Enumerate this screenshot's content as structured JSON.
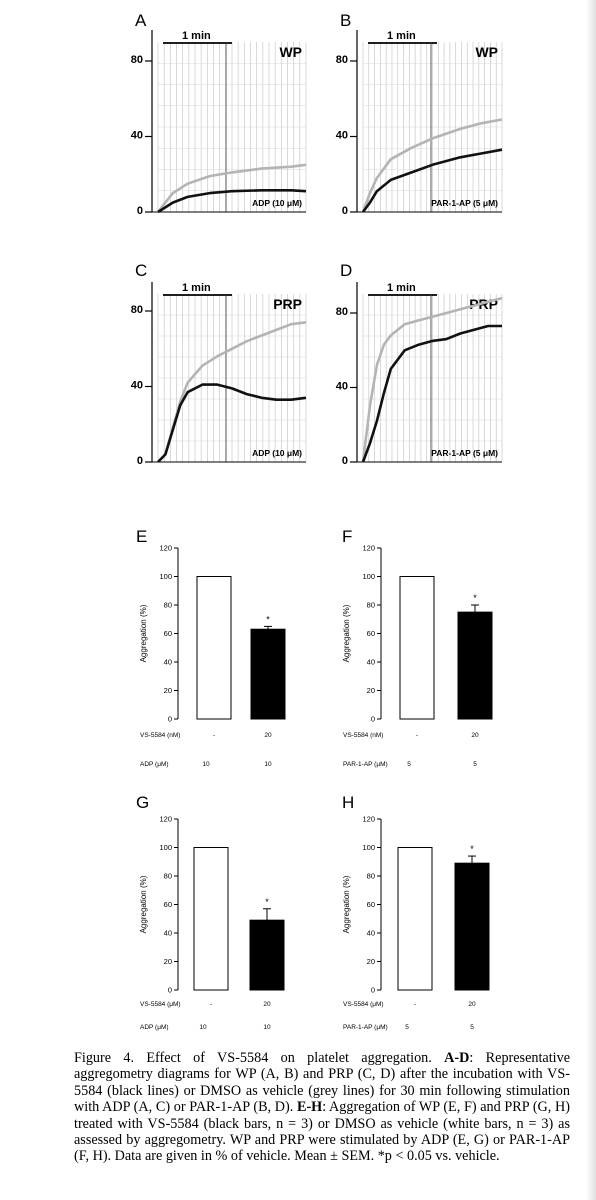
{
  "trace_panels": [
    {
      "letter": "A",
      "tag": "WP",
      "time_label": "1 min",
      "agonist": "ADP (10 μM)",
      "y_ticks": [
        "0",
        "40",
        "80"
      ]
    },
    {
      "letter": "B",
      "tag": "WP",
      "time_label": "1 min",
      "agonist": "PAR-1-AP (5 μM)",
      "y_ticks": [
        "0",
        "40",
        "80"
      ]
    },
    {
      "letter": "C",
      "tag": "PRP",
      "time_label": "1 min",
      "agonist": "ADP (10 μM)",
      "y_ticks": [
        "0",
        "40",
        "80"
      ]
    },
    {
      "letter": "D",
      "tag": "PRP",
      "time_label": "1 min",
      "agonist": "PAR-1-AP (5 μM)",
      "y_ticks": [
        "0",
        "40",
        "80"
      ]
    }
  ],
  "bar_panels": [
    {
      "letter": "E",
      "ylabel": "Aggregation (%)",
      "row1_label": "VS-5584 (nM)",
      "row1_values": [
        "-",
        "20"
      ],
      "row2_label": "ADP (μM)",
      "row2_values": [
        "10",
        "10"
      ],
      "star": "*"
    },
    {
      "letter": "F",
      "ylabel": "Aggregation (%)",
      "row1_label": "VS-5584 (nM)",
      "row1_values": [
        "-",
        "20"
      ],
      "row2_label": "PAR-1-AP (μM)",
      "row2_values": [
        "5",
        "5"
      ],
      "star": "*"
    },
    {
      "letter": "G",
      "ylabel": "Aggregation (%)",
      "row1_label": "VS-5584 (μM)",
      "row1_values": [
        "-",
        "20"
      ],
      "row2_label": "ADP (μM)",
      "row2_values": [
        "10",
        "10"
      ],
      "star": "*"
    },
    {
      "letter": "H",
      "ylabel": "Aggregation (%)",
      "row1_label": "VS-5584 (μM)",
      "row1_values": [
        "-",
        "20"
      ],
      "row2_label": "PAR-1-AP (μM)",
      "row2_values": [
        "5",
        "5"
      ],
      "star": "*"
    }
  ],
  "colors": {
    "vehicle_line": "#b4b4b4",
    "treated_line": "#111111",
    "vehicle_bar": "#ffffff",
    "treated_bar": "#000000"
  },
  "chart_data": [
    {
      "type": "line",
      "panel": "A",
      "ylim": [
        0,
        90
      ],
      "yticks": [
        0,
        40,
        80
      ],
      "grid": true,
      "series": [
        {
          "color": "grey",
          "x": [
            0,
            0.1,
            0.2,
            0.35,
            0.5,
            0.7,
            0.9,
            1
          ],
          "y": [
            0,
            10,
            15,
            19,
            21,
            23,
            24,
            25
          ]
        },
        {
          "color": "black",
          "x": [
            0,
            0.1,
            0.2,
            0.35,
            0.5,
            0.7,
            0.9,
            1
          ],
          "y": [
            0,
            5,
            8,
            10,
            11,
            11.5,
            11.5,
            11
          ]
        }
      ]
    },
    {
      "type": "line",
      "panel": "B",
      "ylim": [
        0,
        90
      ],
      "yticks": [
        0,
        40,
        80
      ],
      "grid": true,
      "series": [
        {
          "color": "grey",
          "x": [
            0,
            0.05,
            0.1,
            0.2,
            0.35,
            0.5,
            0.7,
            0.85,
            1
          ],
          "y": [
            0,
            10,
            18,
            28,
            34,
            39,
            44,
            47,
            49
          ]
        },
        {
          "color": "black",
          "x": [
            0,
            0.05,
            0.1,
            0.2,
            0.35,
            0.5,
            0.7,
            0.85,
            1
          ],
          "y": [
            0,
            5,
            11,
            17,
            21,
            25,
            29,
            31,
            33
          ]
        }
      ]
    },
    {
      "type": "line",
      "panel": "C",
      "ylim": [
        0,
        90
      ],
      "yticks": [
        0,
        40,
        80
      ],
      "grid": true,
      "series": [
        {
          "color": "grey",
          "x": [
            0,
            0.05,
            0.1,
            0.15,
            0.2,
            0.3,
            0.4,
            0.5,
            0.6,
            0.7,
            0.8,
            0.9,
            1
          ],
          "y": [
            0,
            4,
            18,
            32,
            42,
            51,
            56,
            60,
            64,
            67,
            70,
            73,
            74
          ]
        },
        {
          "color": "black",
          "x": [
            0,
            0.05,
            0.1,
            0.15,
            0.2,
            0.3,
            0.4,
            0.5,
            0.6,
            0.7,
            0.8,
            0.9,
            1
          ],
          "y": [
            0,
            4,
            17,
            30,
            37,
            41,
            41,
            39,
            36,
            34,
            33,
            33,
            34
          ]
        }
      ]
    },
    {
      "type": "line",
      "panel": "D",
      "ylim": [
        0,
        90
      ],
      "yticks": [
        0,
        40,
        80
      ],
      "grid": true,
      "series": [
        {
          "color": "grey",
          "x": [
            0,
            0.05,
            0.1,
            0.15,
            0.2,
            0.3,
            0.4,
            0.5,
            0.6,
            0.7,
            0.8,
            0.9,
            1
          ],
          "y": [
            0,
            30,
            52,
            63,
            68,
            74,
            76,
            78,
            80,
            82,
            84,
            86,
            88
          ]
        },
        {
          "color": "black",
          "x": [
            0,
            0.05,
            0.1,
            0.15,
            0.2,
            0.3,
            0.4,
            0.5,
            0.6,
            0.7,
            0.8,
            0.9,
            1
          ],
          "y": [
            0,
            10,
            22,
            37,
            50,
            60,
            63,
            65,
            66,
            69,
            71,
            73,
            73
          ]
        }
      ]
    },
    {
      "type": "bar",
      "panel": "E",
      "categories": [
        "vehicle",
        "VS-5584"
      ],
      "values": [
        100,
        63
      ],
      "errors": [
        0,
        2
      ],
      "ylim": [
        0,
        120
      ],
      "yticks": [
        0,
        20,
        40,
        60,
        80,
        100,
        120
      ]
    },
    {
      "type": "bar",
      "panel": "F",
      "categories": [
        "vehicle",
        "VS-5584"
      ],
      "values": [
        100,
        75
      ],
      "errors": [
        0,
        5
      ],
      "ylim": [
        0,
        120
      ],
      "yticks": [
        0,
        20,
        40,
        60,
        80,
        100,
        120
      ]
    },
    {
      "type": "bar",
      "panel": "G",
      "categories": [
        "vehicle",
        "VS-5584"
      ],
      "values": [
        100,
        49
      ],
      "errors": [
        0,
        8
      ],
      "ylim": [
        0,
        120
      ],
      "yticks": [
        0,
        20,
        40,
        60,
        80,
        100,
        120
      ]
    },
    {
      "type": "bar",
      "panel": "H",
      "categories": [
        "vehicle",
        "VS-5584"
      ],
      "values": [
        100,
        89
      ],
      "errors": [
        0,
        5
      ],
      "ylim": [
        0,
        120
      ],
      "yticks": [
        0,
        20,
        40,
        60,
        80,
        100,
        120
      ]
    }
  ],
  "caption": {
    "prefix": "Figure 4. Effect of VS-5584 on platelet aggregation. ",
    "ad_bold": "A-D",
    "ad_text": ": Representative aggregometry diagrams for WP (A, B) and PRP (C, D) after the incubation with VS-5584 (black lines) or DMSO as vehicle (grey lines) for 30 min following stimulation with ADP (A, C) or PAR-1-AP (B, D). ",
    "eh_bold": "E-H",
    "eh_text": ": Aggregation of WP (E, F) and PRP (G, H) treated with VS-5584 (black bars, n = 3) or DMSO as vehicle (white bars, n = 3) as assessed by aggregometry. WP and PRP were stimulated by ADP (E, G) or PAR-1-AP (F, H). Data are given in % of vehicle. Mean ± SEM. *p < 0.05 vs. vehicle."
  }
}
